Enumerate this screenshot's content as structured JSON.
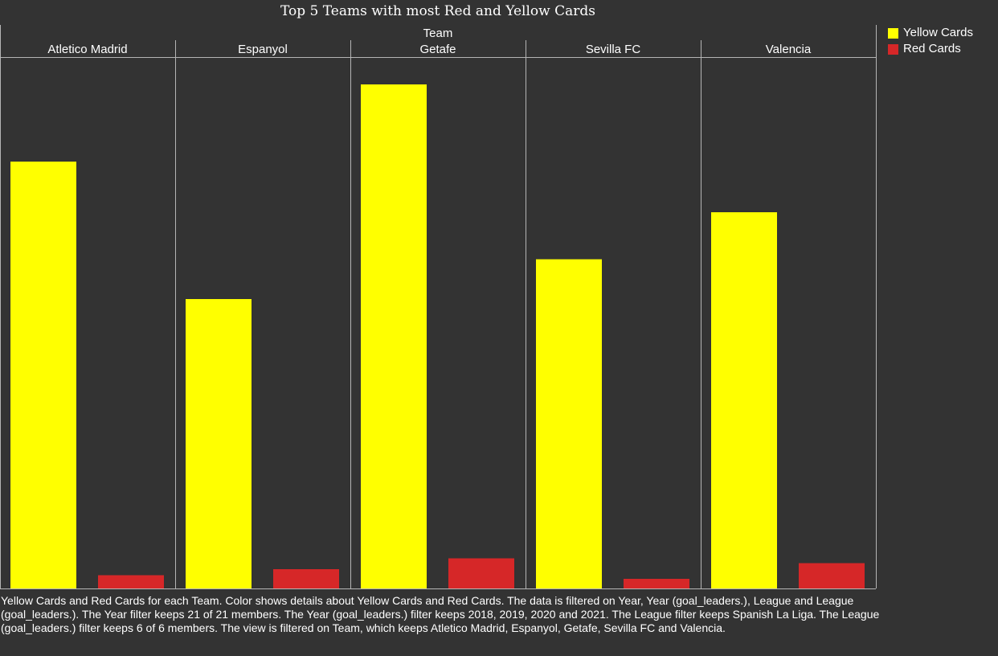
{
  "chart_data": {
    "type": "bar",
    "title": "Top 5 Teams with most Red and Yellow Cards",
    "column_header": "Team",
    "categories": [
      "Atletico Madrid",
      "Espanyol",
      "Getafe",
      "Sevilla FC",
      "Valencia"
    ],
    "series": [
      {
        "name": "Yellow Cards",
        "color": "#ffff00",
        "values": [
          354,
          240,
          418,
          273,
          312
        ]
      },
      {
        "name": "Red Cards",
        "color": "#d62728",
        "values": [
          11,
          16,
          25,
          8,
          21
        ]
      }
    ],
    "ylim": [
      0,
      440
    ],
    "grid": false,
    "legend": "right"
  },
  "caption": "Yellow Cards and Red Cards for each Team.  Color shows details about Yellow Cards and Red Cards. The data is filtered on Year, Year (goal_leaders.), League and League (goal_leaders.). The Year filter keeps 21 of 21 members. The Year (goal_leaders.) filter keeps 2018, 2019, 2020 and 2021. The League filter keeps Spanish La Liga. The League (goal_leaders.) filter keeps 6 of 6 members. The view is filtered on Team, which keeps Atletico Madrid, Espanyol, Getafe, Sevilla FC and Valencia."
}
